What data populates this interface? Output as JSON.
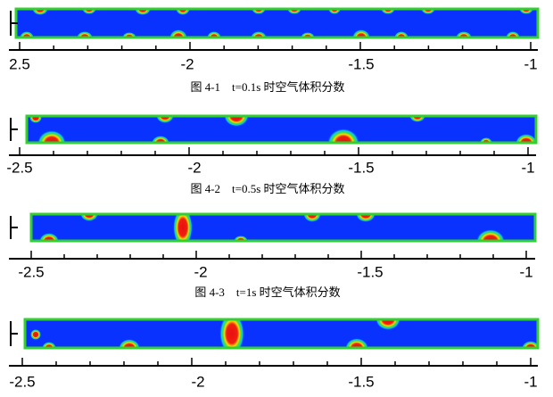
{
  "figures": [
    {
      "tick_labels": [
        "2.5",
        "-2",
        "-1.5",
        "-1"
      ],
      "caption": "图 4-1　t=0.1s 时空气体积分数"
    },
    {
      "tick_labels": [
        "-2.5",
        "-2",
        "-1.5",
        "-1"
      ],
      "caption": "图 4-2　t=0.5s 时空气体积分数"
    },
    {
      "tick_labels": [
        "-2.5",
        "-2",
        "-1.5",
        "-1"
      ],
      "caption": "图 4-3　t=1s 时空气体积分数"
    },
    {
      "tick_labels": [
        "-2.5",
        "-2",
        "-1.5",
        "-1"
      ]
    }
  ]
}
